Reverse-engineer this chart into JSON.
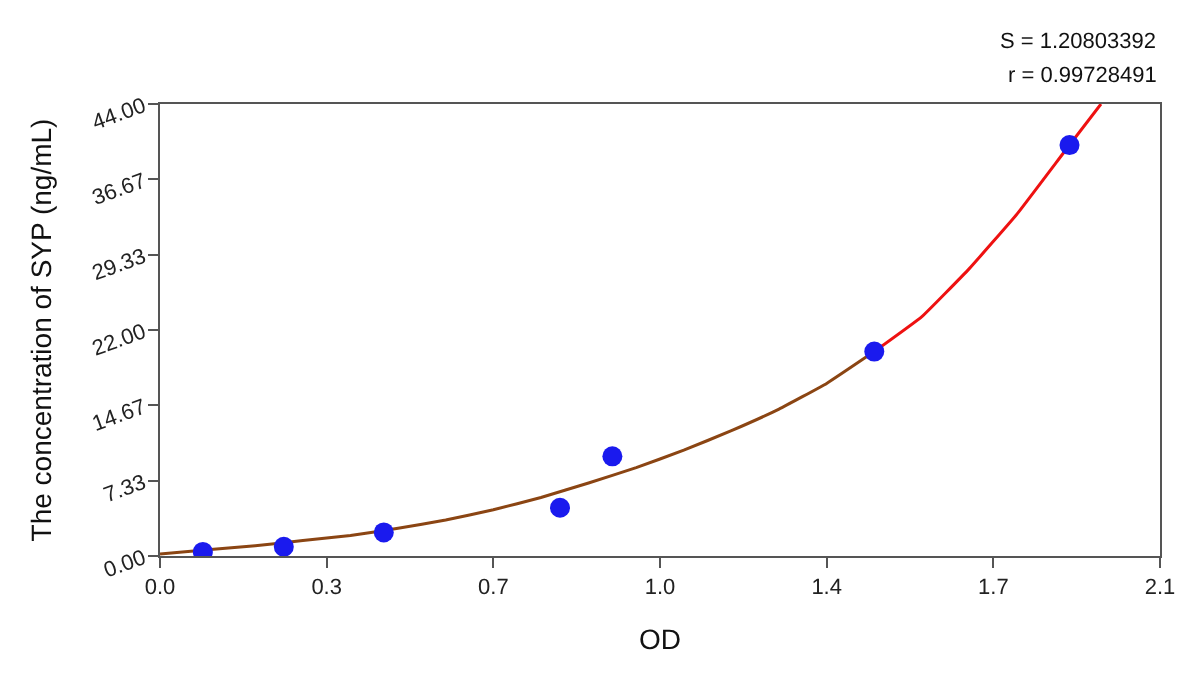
{
  "chart_data": {
    "type": "scatter",
    "xlabel": "OD",
    "ylabel": "The concentration of SYP (ng/mL)",
    "annotations": [
      "S = 1.20803392",
      "r = 0.99728491"
    ],
    "series": [
      {
        "type": "line",
        "color": "#8b4513",
        "marker": "none",
        "x": [
          0,
          0.1,
          0.2,
          0.3,
          0.4,
          0.5,
          0.6,
          0.7,
          0.8,
          0.9,
          1.0,
          1.1,
          1.2,
          1.3,
          1.4,
          1.5
        ],
        "values": [
          0.2,
          0.6,
          1.0,
          1.5,
          2.0,
          2.7,
          3.5,
          4.5,
          5.7,
          7.1,
          8.6,
          10.3,
          12.2,
          14.3,
          16.8,
          19.9
        ]
      },
      {
        "type": "line",
        "color": "#ee1111",
        "marker": "none",
        "x": [
          1.5,
          1.6,
          1.7,
          1.8,
          1.9,
          1.976
        ],
        "values": [
          19.9,
          23.3,
          28.0,
          33.3,
          39.4,
          44
        ]
      },
      {
        "color": "#1a1aee",
        "marker": "circle",
        "x": [
          0.09,
          0.26,
          0.47,
          0.84,
          0.95,
          1.5,
          1.91
        ],
        "values": [
          0.4,
          0.9,
          2.3,
          4.7,
          9.7,
          19.9,
          40.0
        ]
      }
    ],
    "xlim": [
      0,
      2.1
    ],
    "ylim": [
      0,
      44
    ],
    "xticks": [
      {
        "value": 0,
        "label": "0.0"
      },
      {
        "value": 0.35,
        "label": "0.3"
      },
      0.7,
      {
        "value": 1.05,
        "label": "1.0"
      },
      1.4,
      {
        "value": 1.75,
        "label": "1.7"
      },
      2.1
    ],
    "yticks": [
      {
        "value": 0,
        "label": "0.00"
      },
      {
        "value": 7.33,
        "label": "7.33"
      },
      {
        "value": 14.67,
        "label": "14.67"
      },
      {
        "value": 22,
        "label": "22.00"
      },
      {
        "value": 29.33,
        "label": "29.33"
      },
      {
        "value": 36.67,
        "label": "36.67"
      },
      {
        "value": 44,
        "label": "44.00"
      }
    ]
  }
}
